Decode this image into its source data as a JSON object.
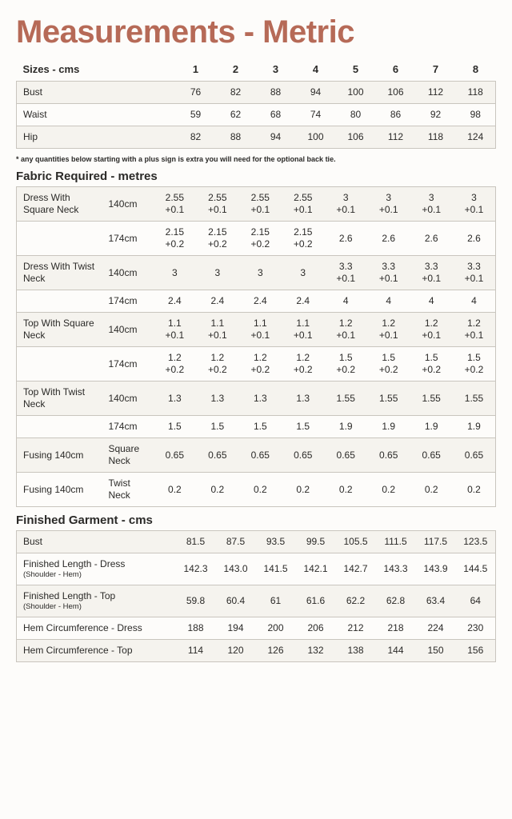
{
  "title": "Measurements - Metric",
  "sizes_header": "Sizes - cms",
  "size_cols": [
    "1",
    "2",
    "3",
    "4",
    "5",
    "6",
    "7",
    "8"
  ],
  "body_rows": [
    {
      "label": "Bust",
      "v": [
        "76",
        "82",
        "88",
        "94",
        "100",
        "106",
        "112",
        "118"
      ]
    },
    {
      "label": "Waist",
      "v": [
        "59",
        "62",
        "68",
        "74",
        "80",
        "86",
        "92",
        "98"
      ]
    },
    {
      "label": "Hip",
      "v": [
        "82",
        "88",
        "94",
        "100",
        "106",
        "112",
        "118",
        "124"
      ]
    }
  ],
  "note": "* any quantities below starting with a plus sign is extra you will need for the optional back tie.",
  "fabric_header": "Fabric Required - metres",
  "fabric_rows": [
    {
      "a": "Dress With Square Neck",
      "b": "140cm",
      "v": [
        [
          "2.55",
          "+0.1"
        ],
        [
          "2.55",
          "+0.1"
        ],
        [
          "2.55",
          "+0.1"
        ],
        [
          "2.55",
          "+0.1"
        ],
        [
          "3",
          "+0.1"
        ],
        [
          "3",
          "+0.1"
        ],
        [
          "3",
          "+0.1"
        ],
        [
          "3",
          "+0.1"
        ]
      ]
    },
    {
      "a": "",
      "b": "174cm",
      "v": [
        [
          "2.15",
          "+0.2"
        ],
        [
          "2.15",
          "+0.2"
        ],
        [
          "2.15",
          "+0.2"
        ],
        [
          "2.15",
          "+0.2"
        ],
        [
          "2.6",
          ""
        ],
        [
          "2.6",
          ""
        ],
        [
          "2.6",
          ""
        ],
        [
          "2.6",
          ""
        ]
      ]
    },
    {
      "a": "Dress With Twist Neck",
      "b": "140cm",
      "v": [
        [
          "3",
          ""
        ],
        [
          "3",
          ""
        ],
        [
          "3",
          ""
        ],
        [
          "3",
          ""
        ],
        [
          "3.3",
          "+0.1"
        ],
        [
          "3.3",
          "+0.1"
        ],
        [
          "3.3",
          "+0.1"
        ],
        [
          "3.3",
          "+0.1"
        ]
      ]
    },
    {
      "a": "",
      "b": "174cm",
      "v": [
        [
          "2.4",
          ""
        ],
        [
          "2.4",
          ""
        ],
        [
          "2.4",
          ""
        ],
        [
          "2.4",
          ""
        ],
        [
          "4",
          ""
        ],
        [
          "4",
          ""
        ],
        [
          "4",
          ""
        ],
        [
          "4",
          ""
        ]
      ]
    },
    {
      "a": "Top With Square Neck",
      "b": "140cm",
      "v": [
        [
          "1.1",
          "+0.1"
        ],
        [
          "1.1",
          "+0.1"
        ],
        [
          "1.1",
          "+0.1"
        ],
        [
          "1.1",
          "+0.1"
        ],
        [
          "1.2",
          "+0.1"
        ],
        [
          "1.2",
          "+0.1"
        ],
        [
          "1.2",
          "+0.1"
        ],
        [
          "1.2",
          "+0.1"
        ]
      ]
    },
    {
      "a": "",
      "b": "174cm",
      "v": [
        [
          "1.2",
          "+0.2"
        ],
        [
          "1.2",
          "+0.2"
        ],
        [
          "1.2",
          "+0.2"
        ],
        [
          "1.2",
          "+0.2"
        ],
        [
          "1.5",
          "+0.2"
        ],
        [
          "1.5",
          "+0.2"
        ],
        [
          "1.5",
          "+0.2"
        ],
        [
          "1.5",
          "+0.2"
        ]
      ]
    },
    {
      "a": "Top With Twist Neck",
      "b": "140cm",
      "v": [
        [
          "1.3",
          ""
        ],
        [
          "1.3",
          ""
        ],
        [
          "1.3",
          ""
        ],
        [
          "1.3",
          ""
        ],
        [
          "1.55",
          ""
        ],
        [
          "1.55",
          ""
        ],
        [
          "1.55",
          ""
        ],
        [
          "1.55",
          ""
        ]
      ]
    },
    {
      "a": "",
      "b": "174cm",
      "v": [
        [
          "1.5",
          ""
        ],
        [
          "1.5",
          ""
        ],
        [
          "1.5",
          ""
        ],
        [
          "1.5",
          ""
        ],
        [
          "1.9",
          ""
        ],
        [
          "1.9",
          ""
        ],
        [
          "1.9",
          ""
        ],
        [
          "1.9",
          ""
        ]
      ]
    },
    {
      "a": "Fusing 140cm",
      "b": "Square Neck",
      "v": [
        [
          "0.65",
          ""
        ],
        [
          "0.65",
          ""
        ],
        [
          "0.65",
          ""
        ],
        [
          "0.65",
          ""
        ],
        [
          "0.65",
          ""
        ],
        [
          "0.65",
          ""
        ],
        [
          "0.65",
          ""
        ],
        [
          "0.65",
          ""
        ]
      ]
    },
    {
      "a": "Fusing 140cm",
      "b": "Twist Neck",
      "v": [
        [
          "0.2",
          ""
        ],
        [
          "0.2",
          ""
        ],
        [
          "0.2",
          ""
        ],
        [
          "0.2",
          ""
        ],
        [
          "0.2",
          ""
        ],
        [
          "0.2",
          ""
        ],
        [
          "0.2",
          ""
        ],
        [
          "0.2",
          ""
        ]
      ]
    }
  ],
  "finished_header": "Finished Garment - cms",
  "finished_rows": [
    {
      "label": "Bust",
      "sub": "",
      "v": [
        "81.5",
        "87.5",
        "93.5",
        "99.5",
        "105.5",
        "111.5",
        "117.5",
        "123.5"
      ]
    },
    {
      "label": "Finished Length - Dress",
      "sub": "(Shoulder - Hem)",
      "v": [
        "142.3",
        "143.0",
        "141.5",
        "142.1",
        "142.7",
        "143.3",
        "143.9",
        "144.5"
      ]
    },
    {
      "label": "Finished Length - Top",
      "sub": "(Shoulder - Hem)",
      "v": [
        "59.8",
        "60.4",
        "61",
        "61.6",
        "62.2",
        "62.8",
        "63.4",
        "64"
      ]
    },
    {
      "label": "Hem Circumference - Dress",
      "sub": "",
      "v": [
        "188",
        "194",
        "200",
        "206",
        "212",
        "218",
        "224",
        "230"
      ]
    },
    {
      "label": "Hem Circumference - Top",
      "sub": "",
      "v": [
        "114",
        "120",
        "126",
        "132",
        "138",
        "144",
        "150",
        "156"
      ]
    }
  ]
}
